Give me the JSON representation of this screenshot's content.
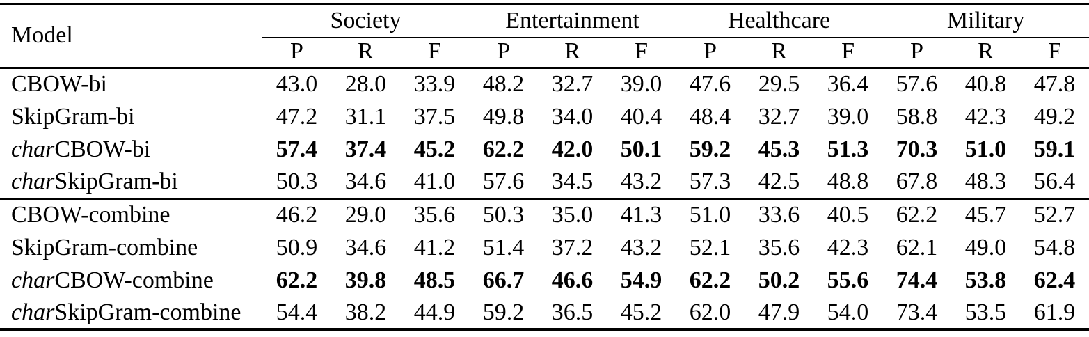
{
  "styles": {
    "text_color": "#000000",
    "background": "#ffffff",
    "rule_color": "#000000"
  },
  "chart_data": {
    "type": "table",
    "model_column_header": "Model",
    "groups": [
      {
        "label": "Society"
      },
      {
        "label": "Entertainment"
      },
      {
        "label": "Healthcare"
      },
      {
        "label": "Military"
      }
    ],
    "metric_headers": [
      "P",
      "R",
      "F"
    ],
    "rows": [
      {
        "model_italic_prefix": "",
        "model": "CBOW-bi",
        "bold": false,
        "section_start": false,
        "values": [
          "43.0",
          "28.0",
          "33.9",
          "48.2",
          "32.7",
          "39.0",
          "47.6",
          "29.5",
          "36.4",
          "57.6",
          "40.8",
          "47.8"
        ]
      },
      {
        "model_italic_prefix": "",
        "model": "SkipGram-bi",
        "bold": false,
        "section_start": false,
        "values": [
          "47.2",
          "31.1",
          "37.5",
          "49.8",
          "34.0",
          "40.4",
          "48.4",
          "32.7",
          "39.0",
          "58.8",
          "42.3",
          "49.2"
        ]
      },
      {
        "model_italic_prefix": "char",
        "model": "CBOW-bi",
        "bold": true,
        "section_start": false,
        "values": [
          "57.4",
          "37.4",
          "45.2",
          "62.2",
          "42.0",
          "50.1",
          "59.2",
          "45.3",
          "51.3",
          "70.3",
          "51.0",
          "59.1"
        ]
      },
      {
        "model_italic_prefix": "char",
        "model": "SkipGram-bi",
        "bold": false,
        "section_start": false,
        "values": [
          "50.3",
          "34.6",
          "41.0",
          "57.6",
          "34.5",
          "43.2",
          "57.3",
          "42.5",
          "48.8",
          "67.8",
          "48.3",
          "56.4"
        ]
      },
      {
        "model_italic_prefix": "",
        "model": "CBOW-combine",
        "bold": false,
        "section_start": true,
        "values": [
          "46.2",
          "29.0",
          "35.6",
          "50.3",
          "35.0",
          "41.3",
          "51.0",
          "33.6",
          "40.5",
          "62.2",
          "45.7",
          "52.7"
        ]
      },
      {
        "model_italic_prefix": "",
        "model": "SkipGram-combine",
        "bold": false,
        "section_start": false,
        "values": [
          "50.9",
          "34.6",
          "41.2",
          "51.4",
          "37.2",
          "43.2",
          "52.1",
          "35.6",
          "42.3",
          "62.1",
          "49.0",
          "54.8"
        ]
      },
      {
        "model_italic_prefix": "char",
        "model": "CBOW-combine",
        "bold": true,
        "section_start": false,
        "values": [
          "62.2",
          "39.8",
          "48.5",
          "66.7",
          "46.6",
          "54.9",
          "62.2",
          "50.2",
          "55.6",
          "74.4",
          "53.8",
          "62.4"
        ]
      },
      {
        "model_italic_prefix": "char",
        "model": "SkipGram-combine",
        "bold": false,
        "section_start": false,
        "values": [
          "54.4",
          "38.2",
          "44.9",
          "59.2",
          "36.5",
          "45.2",
          "62.0",
          "47.9",
          "54.0",
          "73.4",
          "53.5",
          "61.9"
        ]
      }
    ]
  }
}
